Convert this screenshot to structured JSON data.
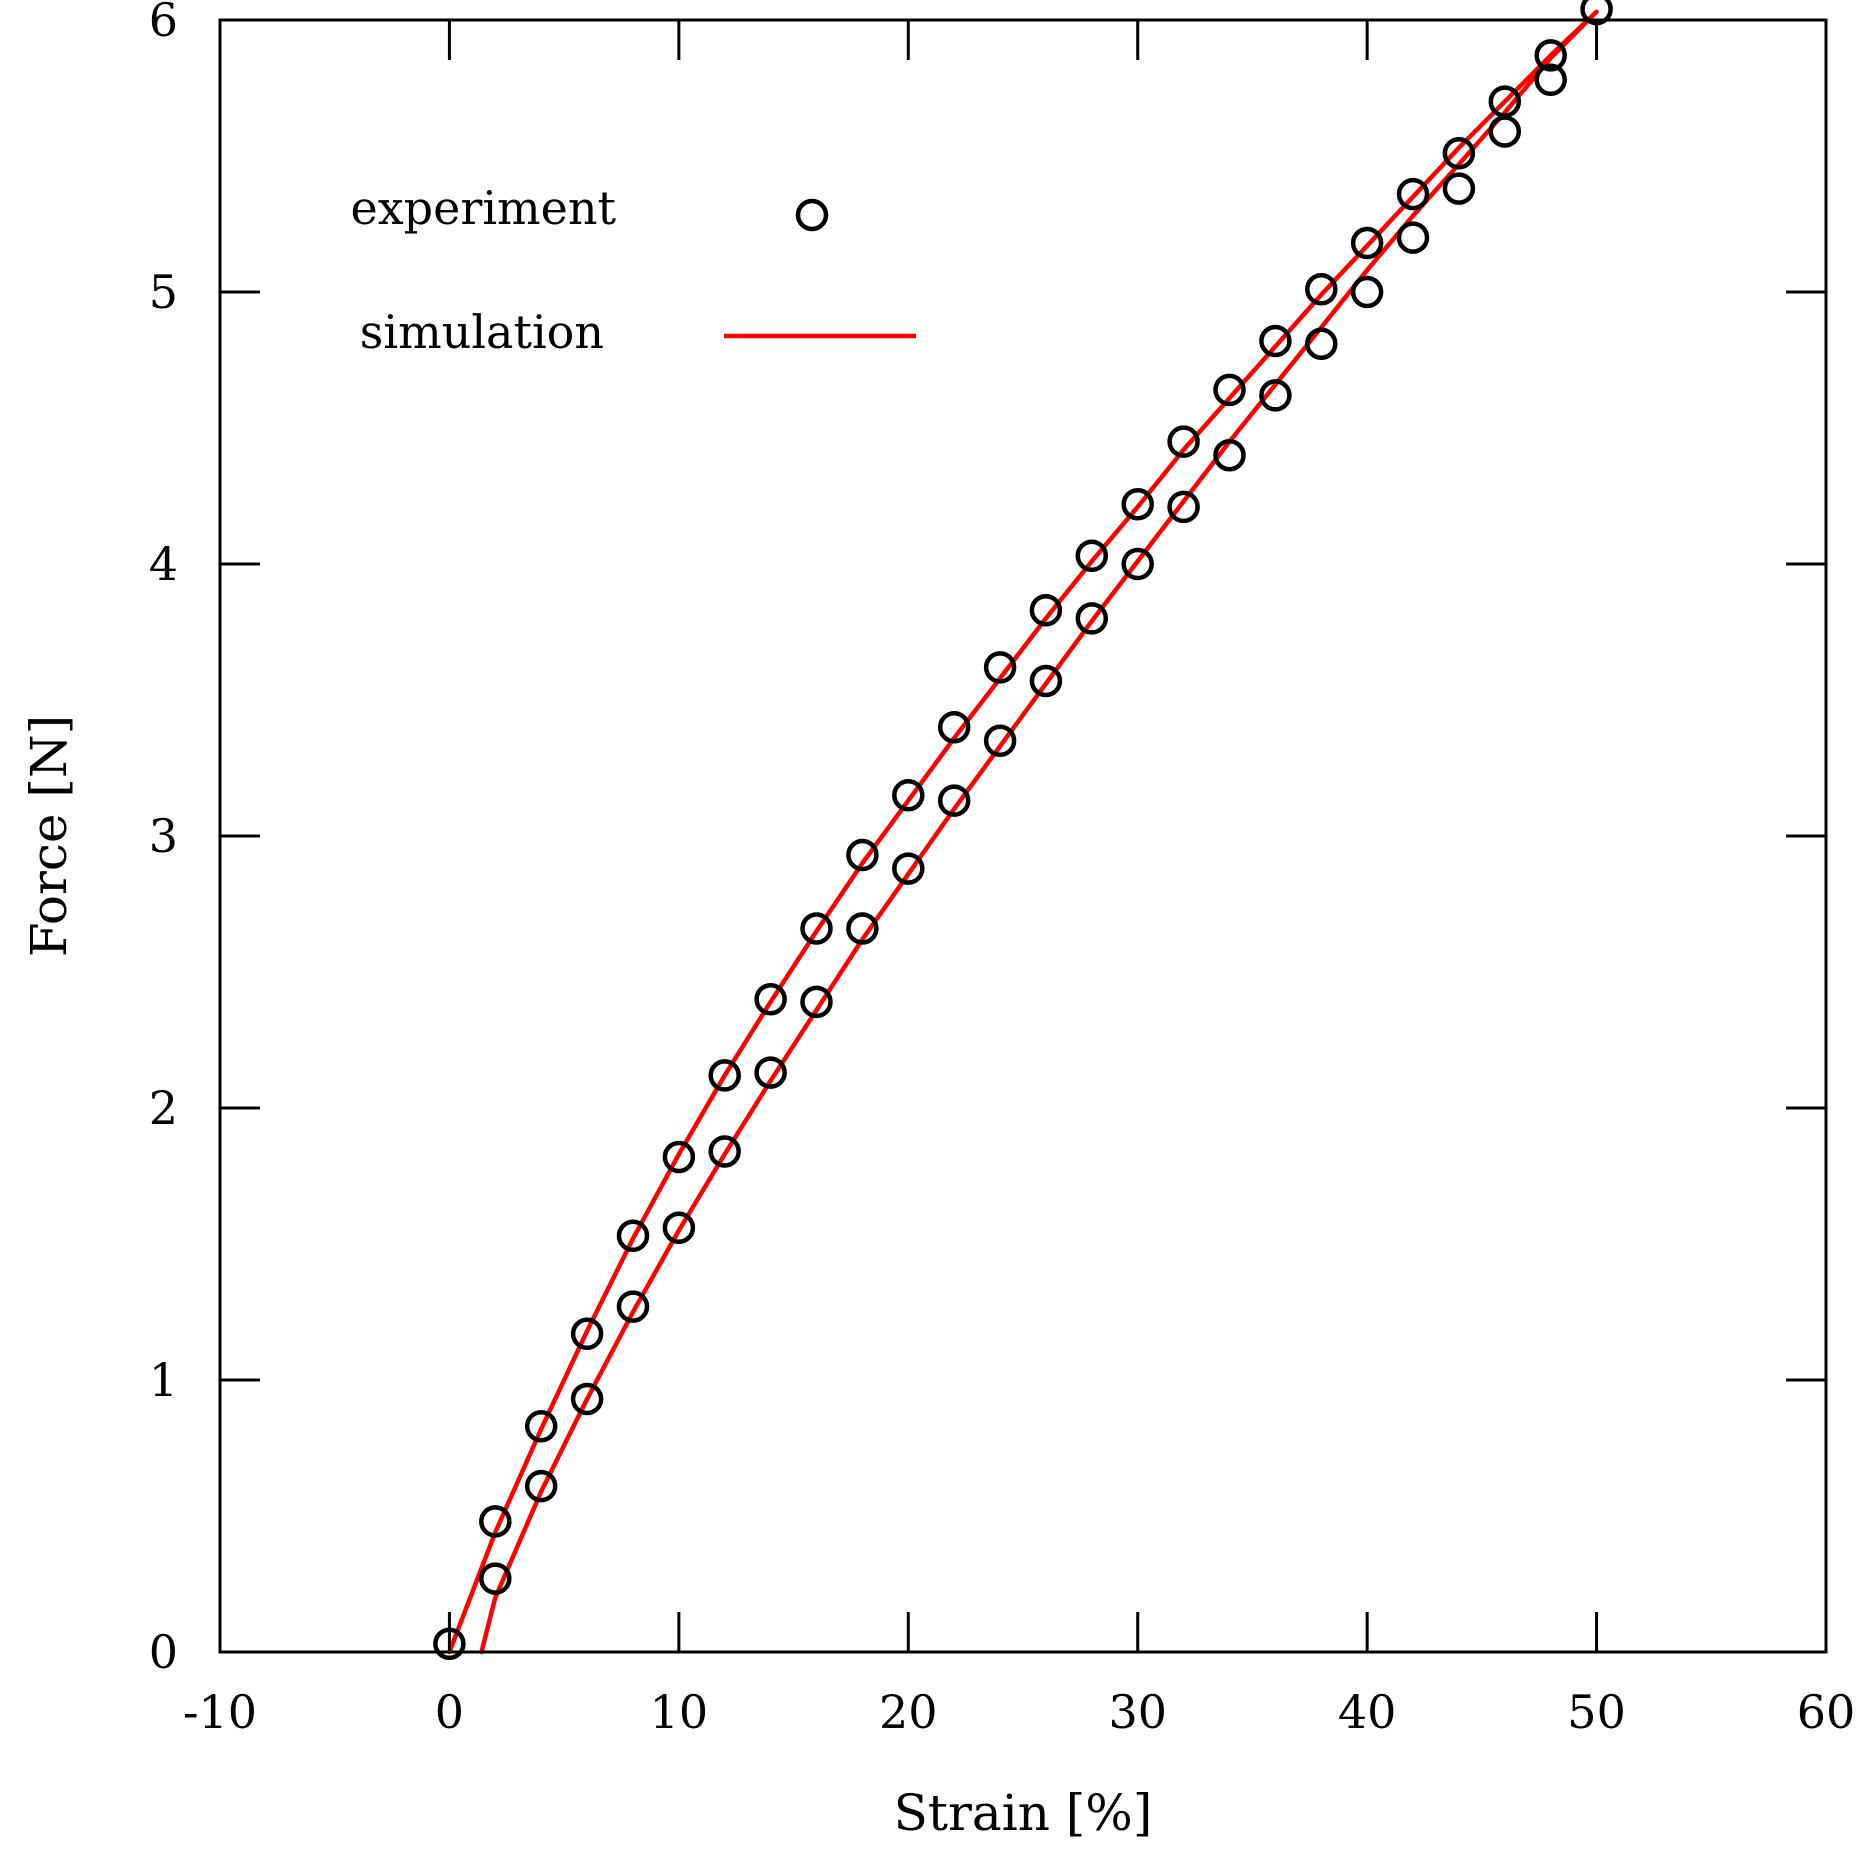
{
  "chart_data": {
    "type": "scatter",
    "title": "",
    "xlabel": "Strain [%]",
    "ylabel": "Force [N]",
    "xlim": [
      -10,
      60
    ],
    "ylim": [
      0,
      6
    ],
    "xticks": [
      "-10",
      "0",
      "10",
      "20",
      "30",
      "40",
      "50",
      "60"
    ],
    "yticks": [
      "0",
      "1",
      "2",
      "3",
      "4",
      "5",
      "6"
    ],
    "grid": false,
    "legend_placement": "top-left",
    "colors": {
      "experiment": "#000000",
      "simulation": "#ff0000"
    },
    "series": [
      {
        "name": "experiment",
        "type": "scatter",
        "marker": "open-circle",
        "x": [
          0,
          2,
          4,
          6,
          8,
          10,
          12,
          14,
          16,
          18,
          20,
          22,
          24,
          26,
          28,
          30,
          32,
          34,
          36,
          38,
          40,
          42,
          44,
          46,
          48,
          50,
          48,
          46,
          44,
          42,
          40,
          38,
          36,
          34,
          32,
          30,
          28,
          26,
          24,
          22,
          20,
          18,
          16,
          14,
          12,
          10,
          8,
          6,
          4,
          2
        ],
        "y": [
          0.03,
          0.27,
          0.61,
          0.93,
          1.27,
          1.56,
          1.84,
          2.13,
          2.39,
          2.66,
          2.88,
          3.13,
          3.35,
          3.57,
          3.8,
          4.0,
          4.21,
          4.4,
          4.62,
          4.81,
          5.0,
          5.2,
          5.38,
          5.59,
          5.78,
          6.04,
          5.87,
          5.7,
          5.51,
          5.36,
          5.18,
          5.01,
          4.82,
          4.64,
          4.45,
          4.22,
          4.03,
          3.83,
          3.62,
          3.4,
          3.15,
          2.93,
          2.66,
          2.4,
          2.12,
          1.82,
          1.53,
          1.17,
          0.83,
          0.48
        ]
      },
      {
        "name": "simulation",
        "type": "line",
        "x": [
          0,
          2,
          4,
          6,
          8,
          10,
          12,
          14,
          16,
          18,
          20,
          22,
          24,
          26,
          28,
          30,
          32,
          34,
          36,
          38,
          40,
          42,
          44,
          46,
          48,
          50,
          48,
          46,
          44,
          42,
          40,
          38,
          36,
          34,
          32,
          30,
          28,
          26,
          24,
          22,
          20,
          18,
          16,
          14,
          12,
          10,
          8,
          6,
          4,
          2,
          1.4
        ],
        "y": [
          0.0,
          0.44,
          0.82,
          1.18,
          1.52,
          1.83,
          2.12,
          2.39,
          2.65,
          2.9,
          3.13,
          3.36,
          3.58,
          3.8,
          4.01,
          4.21,
          4.42,
          4.61,
          4.8,
          4.99,
          5.17,
          5.35,
          5.53,
          5.7,
          5.87,
          6.03,
          5.86,
          5.66,
          5.47,
          5.28,
          5.08,
          4.87,
          4.66,
          4.45,
          4.23,
          4.01,
          3.79,
          3.56,
          3.33,
          3.1,
          2.86,
          2.62,
          2.36,
          2.1,
          1.83,
          1.55,
          1.25,
          0.93,
          0.59,
          0.2,
          0.0
        ]
      }
    ]
  }
}
